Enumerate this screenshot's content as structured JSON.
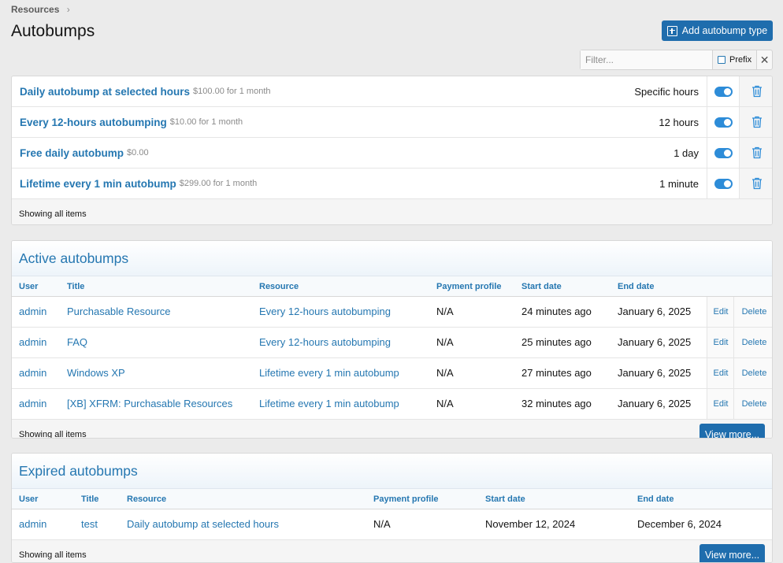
{
  "breadcrumb": {
    "label": "Resources",
    "chevron": "chevron-right-icon"
  },
  "page": {
    "title": "Autobumps",
    "add_button_label": "Add autobump type"
  },
  "filter": {
    "placeholder": "Filter...",
    "prefix_label": "Prefix",
    "clear_symbol": "✕"
  },
  "types": {
    "rows": [
      {
        "name": "Daily autobump at selected hours",
        "price": "$100.00 for 1 month",
        "interval": "Specific hours",
        "enabled": true
      },
      {
        "name": "Every 12-hours autobumping",
        "price": "$10.00 for 1 month",
        "interval": "12 hours",
        "enabled": true
      },
      {
        "name": "Free daily autobump",
        "price": "$0.00",
        "interval": "1 day",
        "enabled": true
      },
      {
        "name": "Lifetime every 1 min autobump",
        "price": "$299.00 for 1 month",
        "interval": "1 minute",
        "enabled": true
      }
    ],
    "footer": "Showing all items"
  },
  "active": {
    "title": "Active autobumps",
    "columns": [
      "User",
      "Title",
      "Resource",
      "Payment profile",
      "Start date",
      "End date"
    ],
    "rows": [
      {
        "user": "admin",
        "title": "Purchasable Resource",
        "resource": "Every 12-hours autobumping",
        "payment": "N/A",
        "start": "24 minutes ago",
        "end": "January 6, 2025",
        "edit": "Edit",
        "delete": "Delete"
      },
      {
        "user": "admin",
        "title": "FAQ",
        "resource": "Every 12-hours autobumping",
        "payment": "N/A",
        "start": "25 minutes ago",
        "end": "January 6, 2025",
        "edit": "Edit",
        "delete": "Delete"
      },
      {
        "user": "admin",
        "title": "Windows XP",
        "resource": "Lifetime every 1 min autobump",
        "payment": "N/A",
        "start": "27 minutes ago",
        "end": "January 6, 2025",
        "edit": "Edit",
        "delete": "Delete"
      },
      {
        "user": "admin",
        "title": "[XB] XFRM: Purchasable Resources",
        "resource": "Lifetime every 1 min autobump",
        "payment": "N/A",
        "start": "32 minutes ago",
        "end": "January 6, 2025",
        "edit": "Edit",
        "delete": "Delete"
      }
    ],
    "footer": "Showing all items",
    "view_more": "View more..."
  },
  "expired": {
    "title": "Expired autobumps",
    "columns": [
      "User",
      "Title",
      "Resource",
      "Payment profile",
      "Start date",
      "End date"
    ],
    "rows": [
      {
        "user": "admin",
        "title": "test",
        "resource": "Daily autobump at selected hours",
        "payment": "N/A",
        "start": "November 12, 2024",
        "end": "December 6, 2024"
      }
    ],
    "footer": "Showing all items",
    "view_more": "View more..."
  },
  "colors": {
    "link": "#2577b1",
    "button": "#1f6dad",
    "toggle_on": "#2d8cd8",
    "background": "#ebebeb"
  }
}
